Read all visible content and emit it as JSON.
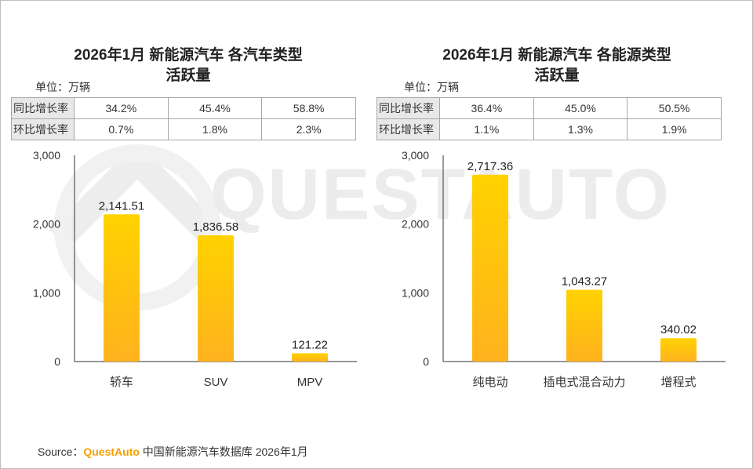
{
  "watermark": "QUESTAUTO",
  "colors": {
    "bar_top": "#ffd200",
    "bar_bottom": "#ffb21e",
    "brand": "#f5a000",
    "axis": "#333333"
  },
  "left": {
    "title_line1": "2026年1月 新能源汽车 各汽车类型",
    "title_line2": "活跃量",
    "unit": "单位：万辆",
    "table": [
      {
        "label": "同比增长率",
        "values": [
          "34.2%",
          "45.4%",
          "58.8%"
        ]
      },
      {
        "label": "环比增长率",
        "values": [
          "0.7%",
          "1.8%",
          "2.3%"
        ]
      }
    ]
  },
  "right": {
    "title_line1": "2026年1月 新能源汽车 各能源类型",
    "title_line2": "活跃量",
    "unit": "单位：万辆",
    "table": [
      {
        "label": "同比增长率",
        "values": [
          "36.4%",
          "45.0%",
          "50.5%"
        ]
      },
      {
        "label": "环比增长率",
        "values": [
          "1.1%",
          "1.3%",
          "1.9%"
        ]
      }
    ]
  },
  "chart_data": [
    {
      "type": "bar",
      "title": "2026年1月 新能源汽车 各汽车类型活跃量",
      "categories": [
        "轿车",
        "SUV",
        "MPV"
      ],
      "values": [
        2141.51,
        1836.58,
        121.22
      ],
      "data_labels": [
        "2,141.51",
        "1,836.58",
        "121.22"
      ],
      "ylim": [
        0,
        3000
      ],
      "yticks": [
        0,
        1000,
        2000,
        3000
      ],
      "ytick_labels": [
        "0",
        "1,000",
        "2,000",
        "3,000"
      ],
      "grid": false,
      "legend": "none"
    },
    {
      "type": "bar",
      "title": "2026年1月 新能源汽车 各能源类型活跃量",
      "categories": [
        "纯电动",
        "插电式混合动力",
        "增程式"
      ],
      "values": [
        2717.36,
        1043.27,
        340.02
      ],
      "data_labels": [
        "2,717.36",
        "1,043.27",
        "340.02"
      ],
      "ylim": [
        0,
        3000
      ],
      "yticks": [
        0,
        1000,
        2000,
        3000
      ],
      "ytick_labels": [
        "0",
        "1,000",
        "2,000",
        "3,000"
      ],
      "grid": false,
      "legend": "none"
    }
  ],
  "source": {
    "prefix": "Source：",
    "brand": "QuestAuto",
    "text": " 中国新能源汽车数据库 2026年1月"
  }
}
